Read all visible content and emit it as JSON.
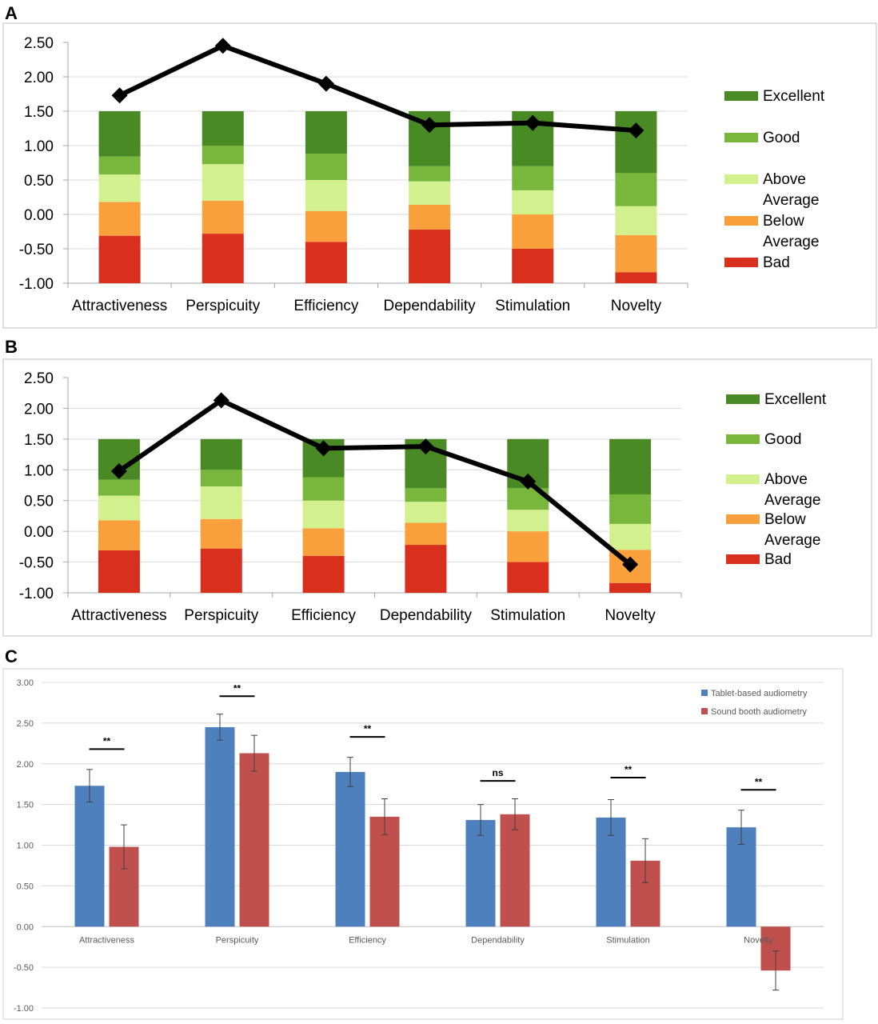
{
  "chart_data": [
    {
      "panel_label": "A",
      "type": "bar",
      "stacked": true,
      "categories": [
        "Attractiveness",
        "Perspicuity",
        "Efficiency",
        "Dependability",
        "Stimulation",
        "Novelty"
      ],
      "ylim": [
        -1.0,
        2.5
      ],
      "yticks": [
        "2.50",
        "2.00",
        "1.50",
        "1.00",
        "0.50",
        "0.00",
        "-0.50",
        "-1.00"
      ],
      "ytick_values": [
        2.5,
        2.0,
        1.5,
        1.0,
        0.5,
        0.0,
        -0.5,
        -1.0
      ],
      "grid": true,
      "legend_position": "right",
      "legend": [
        {
          "lines": [
            "Excellent"
          ],
          "color": "#4a8a24"
        },
        {
          "lines": [
            "Good"
          ],
          "color": "#78b63c"
        },
        {
          "lines": [
            "Above",
            "Average"
          ],
          "color": "#d2f08e"
        },
        {
          "lines": [
            "Below",
            "Average"
          ],
          "color": "#f9a03c"
        },
        {
          "lines": [
            "Bad"
          ],
          "color": "#d9301e"
        }
      ],
      "series": [
        {
          "color": "#d9301e",
          "values": [
            0.69,
            0.72,
            0.6,
            0.78,
            0.5,
            0.16
          ]
        },
        {
          "color": "#f9a03c",
          "values": [
            0.49,
            0.48,
            0.45,
            0.36,
            0.5,
            0.54
          ]
        },
        {
          "color": "#d2f08e",
          "values": [
            0.4,
            0.53,
            0.45,
            0.34,
            0.35,
            0.42
          ]
        },
        {
          "color": "#78b63c",
          "values": [
            0.26,
            0.27,
            0.38,
            0.22,
            0.35,
            0.48
          ]
        },
        {
          "color": "#4a8a24",
          "values": [
            0.66,
            0.5,
            0.62,
            0.8,
            0.8,
            0.9
          ]
        }
      ],
      "line": {
        "color": "#000000",
        "values": [
          1.73,
          2.45,
          1.9,
          1.3,
          1.33,
          1.22
        ]
      }
    },
    {
      "panel_label": "B",
      "type": "bar",
      "stacked": true,
      "categories": [
        "Attractiveness",
        "Perspicuity",
        "Efficiency",
        "Dependability",
        "Stimulation",
        "Novelty"
      ],
      "ylim": [
        -1.0,
        2.5
      ],
      "yticks": [
        "2.50",
        "2.00",
        "1.50",
        "1.00",
        "0.50",
        "0.00",
        "-0.50",
        "-1.00"
      ],
      "ytick_values": [
        2.5,
        2.0,
        1.5,
        1.0,
        0.5,
        0.0,
        -0.5,
        -1.0
      ],
      "grid": true,
      "legend_position": "right",
      "legend": [
        {
          "lines": [
            "Excellent"
          ],
          "color": "#4a8a24"
        },
        {
          "lines": [
            "Good"
          ],
          "color": "#78b63c"
        },
        {
          "lines": [
            "Above",
            "Average"
          ],
          "color": "#d2f08e"
        },
        {
          "lines": [
            "Below",
            "Average"
          ],
          "color": "#f9a03c"
        },
        {
          "lines": [
            "Bad"
          ],
          "color": "#d9301e"
        }
      ],
      "series": [
        {
          "color": "#d9301e",
          "values": [
            0.69,
            0.72,
            0.6,
            0.78,
            0.5,
            0.16
          ]
        },
        {
          "color": "#f9a03c",
          "values": [
            0.49,
            0.48,
            0.45,
            0.36,
            0.5,
            0.54
          ]
        },
        {
          "color": "#d2f08e",
          "values": [
            0.4,
            0.53,
            0.45,
            0.34,
            0.35,
            0.42
          ]
        },
        {
          "color": "#78b63c",
          "values": [
            0.26,
            0.27,
            0.38,
            0.22,
            0.35,
            0.48
          ]
        },
        {
          "color": "#4a8a24",
          "values": [
            0.66,
            0.5,
            0.62,
            0.8,
            0.8,
            0.9
          ]
        }
      ],
      "line": {
        "color": "#000000",
        "values": [
          0.98,
          2.13,
          1.35,
          1.38,
          0.81,
          -0.54
        ]
      }
    },
    {
      "panel_label": "C",
      "type": "bar",
      "categories": [
        "Attractiveness",
        "Perspicuity",
        "Efficiency",
        "Dependability",
        "Stimulation",
        "Novelty"
      ],
      "ylim": [
        -1.0,
        3.0
      ],
      "yticks": [
        "3.00",
        "2.50",
        "2.00",
        "1.50",
        "1.00",
        "0.50",
        "0.00",
        "-0.50",
        "-1.00"
      ],
      "ytick_values": [
        3.0,
        2.5,
        2.0,
        1.5,
        1.0,
        0.5,
        0.0,
        -0.5,
        -1.0
      ],
      "grid": true,
      "legend_position": "top-right",
      "series": [
        {
          "name": "Tablet-based audiometry",
          "color": "#4e80bd",
          "values": [
            1.73,
            2.45,
            1.9,
            1.31,
            1.34,
            1.22
          ],
          "err": [
            0.2,
            0.16,
            0.18,
            0.19,
            0.22,
            0.21
          ]
        },
        {
          "name": "Sound booth audiometry",
          "color": "#c0504d",
          "values": [
            0.98,
            2.13,
            1.35,
            1.38,
            0.81,
            -0.54
          ],
          "err": [
            0.27,
            0.22,
            0.22,
            0.19,
            0.27,
            0.24
          ]
        }
      ],
      "significance": [
        "**",
        "**",
        "**",
        "ns",
        "**",
        "**"
      ],
      "significance_y": [
        2.18,
        2.83,
        2.33,
        1.79,
        1.83,
        1.68
      ]
    }
  ]
}
